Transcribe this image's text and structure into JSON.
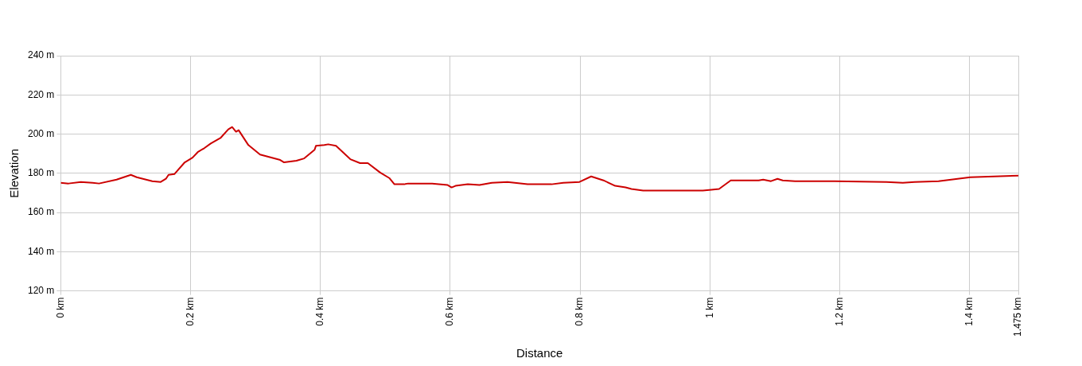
{
  "chart_data": {
    "type": "line",
    "xlabel": "Distance",
    "ylabel": "Elevation",
    "x": [
      0,
      0.012,
      0.031,
      0.049,
      0.059,
      0.086,
      0.108,
      0.117,
      0.141,
      0.154,
      0.162,
      0.166,
      0.175,
      0.191,
      0.203,
      0.211,
      0.221,
      0.231,
      0.246,
      0.258,
      0.264,
      0.27,
      0.274,
      0.289,
      0.307,
      0.338,
      0.344,
      0.363,
      0.375,
      0.391,
      0.393,
      0.406,
      0.412,
      0.424,
      0.446,
      0.461,
      0.473,
      0.492,
      0.506,
      0.514,
      0.529,
      0.535,
      0.572,
      0.596,
      0.602,
      0.608,
      0.627,
      0.645,
      0.664,
      0.688,
      0.719,
      0.756,
      0.774,
      0.799,
      0.817,
      0.836,
      0.854,
      0.87,
      0.879,
      0.897,
      0.934,
      0.971,
      0.989,
      1.002,
      1.014,
      1.032,
      1.051,
      1.075,
      1.082,
      1.094,
      1.104,
      1.112,
      1.131,
      1.192,
      1.272,
      1.297,
      1.315,
      1.352,
      1.401,
      1.438,
      1.475
    ],
    "series": [
      {
        "color": "#cc0000",
        "values": [
          175.2,
          174.8,
          175.6,
          175.2,
          174.8,
          176.8,
          179.2,
          178,
          176,
          175.6,
          177.2,
          179.2,
          179.6,
          185.6,
          188,
          190.8,
          192.8,
          195.2,
          198,
          202.4,
          203.6,
          201.2,
          202,
          194.4,
          189.6,
          186.8,
          185.6,
          186.4,
          187.6,
          192,
          194,
          194.4,
          194.8,
          194,
          187.2,
          185.2,
          185.2,
          180.4,
          177.6,
          174.4,
          174.4,
          174.8,
          174.8,
          174,
          172.8,
          173.6,
          174.4,
          174,
          175.2,
          175.6,
          174.4,
          174.4,
          175.2,
          175.6,
          178.4,
          176.4,
          173.6,
          172.8,
          172,
          171.2,
          171.2,
          171.2,
          171.2,
          171.6,
          172,
          176.4,
          176.4,
          176.4,
          176.8,
          176,
          177.2,
          176.4,
          176,
          176,
          175.6,
          175.2,
          175.6,
          176,
          178,
          178.4,
          178.8
        ]
      }
    ],
    "xlim": [
      0,
      1.475
    ],
    "xticks": [
      {
        "value": 0,
        "label": "0 km"
      },
      {
        "value": 0.2,
        "label": "0.2 km"
      },
      {
        "value": 0.4,
        "label": "0.4 km"
      },
      {
        "value": 0.6,
        "label": "0.6 km"
      },
      {
        "value": 0.8,
        "label": "0.8 km"
      },
      {
        "value": 1,
        "label": "1 km"
      },
      {
        "value": 1.2,
        "label": "1.2 km"
      },
      {
        "value": 1.4,
        "label": "1.4 km"
      },
      {
        "value": 1.475,
        "label": "1.475 km"
      }
    ],
    "ylim": [
      120,
      240
    ],
    "yticks": [
      {
        "value": 120,
        "label": "120 m"
      },
      {
        "value": 140,
        "label": "140 m"
      },
      {
        "value": 160,
        "label": "160 m"
      },
      {
        "value": 180,
        "label": "180 m"
      },
      {
        "value": 200,
        "label": "200 m"
      },
      {
        "value": 220,
        "label": "220 m"
      },
      {
        "value": 240,
        "label": "240 m"
      }
    ],
    "grid": true,
    "legend": false,
    "marker": "none",
    "line_style": "solid"
  }
}
